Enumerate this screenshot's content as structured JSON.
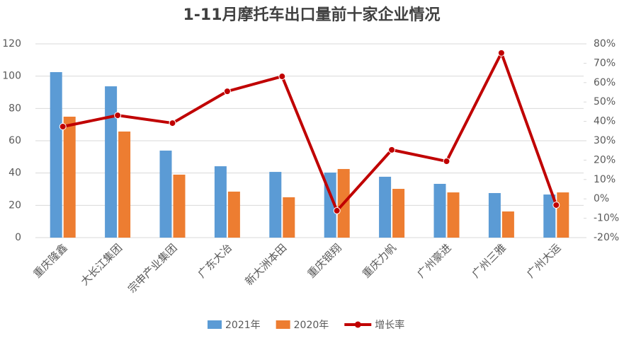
{
  "chart_data": {
    "type": "bar-line",
    "title": "1-11月摩托车出口量前十家企业情况",
    "categories": [
      "重庆隆鑫",
      "大长江集团",
      "宗申产业集团",
      "广东大冶",
      "新大洲本田",
      "重庆银翔",
      "重庆力帆",
      "广州豪进",
      "广州三雅",
      "广州大运"
    ],
    "series": [
      {
        "name": "2021年",
        "type": "bar",
        "color": "#5b9bd5",
        "values": [
          102.5,
          93.7,
          53.9,
          44.2,
          40.7,
          40.3,
          37.7,
          33.3,
          27.6,
          26.7
        ]
      },
      {
        "name": "2020年",
        "type": "bar",
        "color": "#ed7d31",
        "values": [
          74.9,
          65.7,
          39,
          28.5,
          25,
          42.5,
          30.2,
          28,
          16.2,
          28
        ]
      },
      {
        "name": "增长率",
        "type": "line",
        "axis": "y2",
        "color": "#c00000",
        "values": [
          37.3,
          43.1,
          39.1,
          55.5,
          63.2,
          -6.1,
          25.3,
          19.4,
          75.3,
          -3.2
        ]
      }
    ],
    "ylim": [
      0,
      120
    ],
    "yticks": [
      0,
      20,
      40,
      60,
      80,
      100,
      120
    ],
    "y2lim": [
      -20,
      80
    ],
    "y2ticks": [
      {
        "value": -20,
        "label": "-20%"
      },
      {
        "value": -10,
        "label": "-10%"
      },
      {
        "value": 0,
        "label": "0%"
      },
      {
        "value": 10,
        "label": "10%"
      },
      {
        "value": 20,
        "label": "20%"
      },
      {
        "value": 30,
        "label": "30%"
      },
      {
        "value": 40,
        "label": "40%"
      },
      {
        "value": 50,
        "label": "50%"
      },
      {
        "value": 60,
        "label": "60%"
      },
      {
        "value": 70,
        "label": "70%"
      },
      {
        "value": 80,
        "label": "80%"
      }
    ],
    "grid": true,
    "legend": "bottom"
  }
}
